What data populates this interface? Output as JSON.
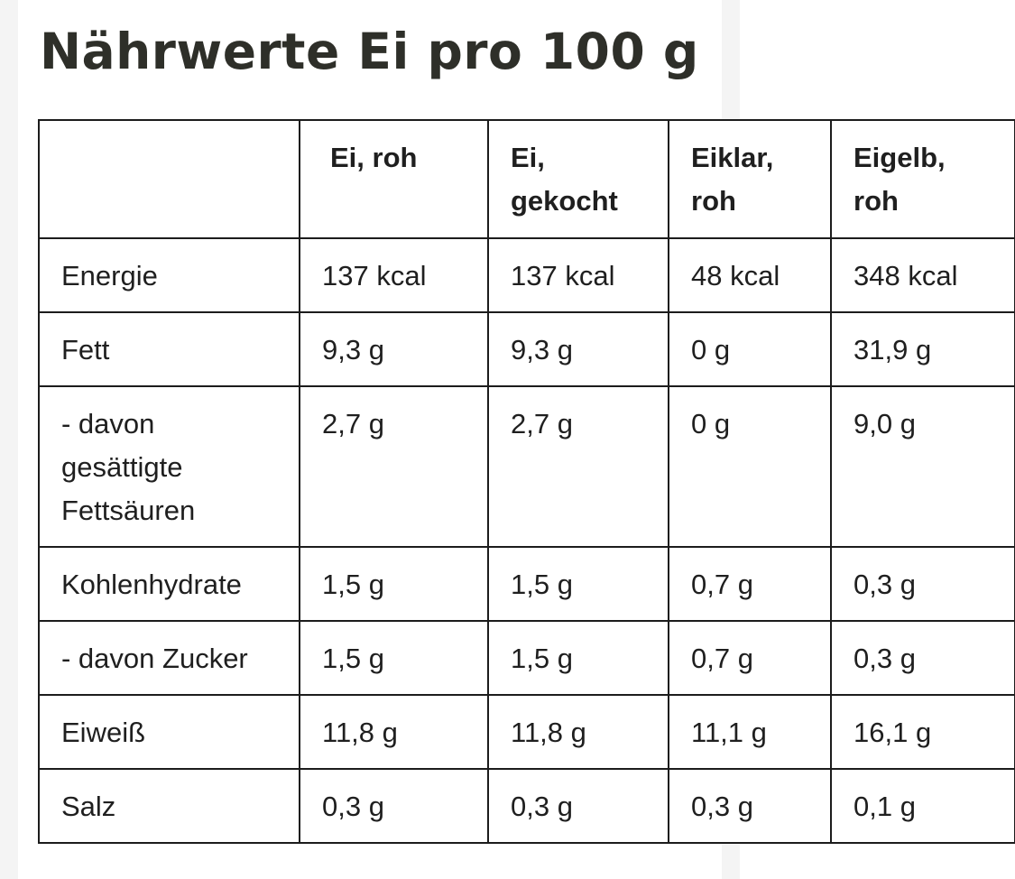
{
  "title": "Nährwerte Ei pro 100 g",
  "table": {
    "headers": [
      "",
      "Ei, roh",
      "Ei, gekocht",
      "Eiklar, roh",
      "Eigelb, roh"
    ],
    "rows": [
      {
        "label": "Energie",
        "values": [
          "137 kcal",
          "137 kcal",
          "48 kcal",
          "348 kcal"
        ]
      },
      {
        "label": "Fett",
        "values": [
          "9,3 g",
          "9,3 g",
          "0 g",
          "31,9 g"
        ]
      },
      {
        "label": "- davon gesättigte Fettsäuren",
        "values": [
          "2,7 g",
          "2,7 g",
          "0 g",
          "9,0 g"
        ]
      },
      {
        "label": "Kohlenhydrate",
        "values": [
          "1,5 g",
          "1,5 g",
          "0,7 g",
          "0,3 g"
        ]
      },
      {
        "label": "- davon Zucker",
        "values": [
          "1,5 g",
          "1,5 g",
          "0,7 g",
          "0,3 g"
        ]
      },
      {
        "label": "Eiweiß",
        "values": [
          "11,8 g",
          "11,8 g",
          "11,1 g",
          "16,1 g"
        ]
      },
      {
        "label": "Salz",
        "values": [
          "0,3 g",
          "0,3 g",
          "0,3 g",
          "0,1 g"
        ]
      }
    ]
  }
}
